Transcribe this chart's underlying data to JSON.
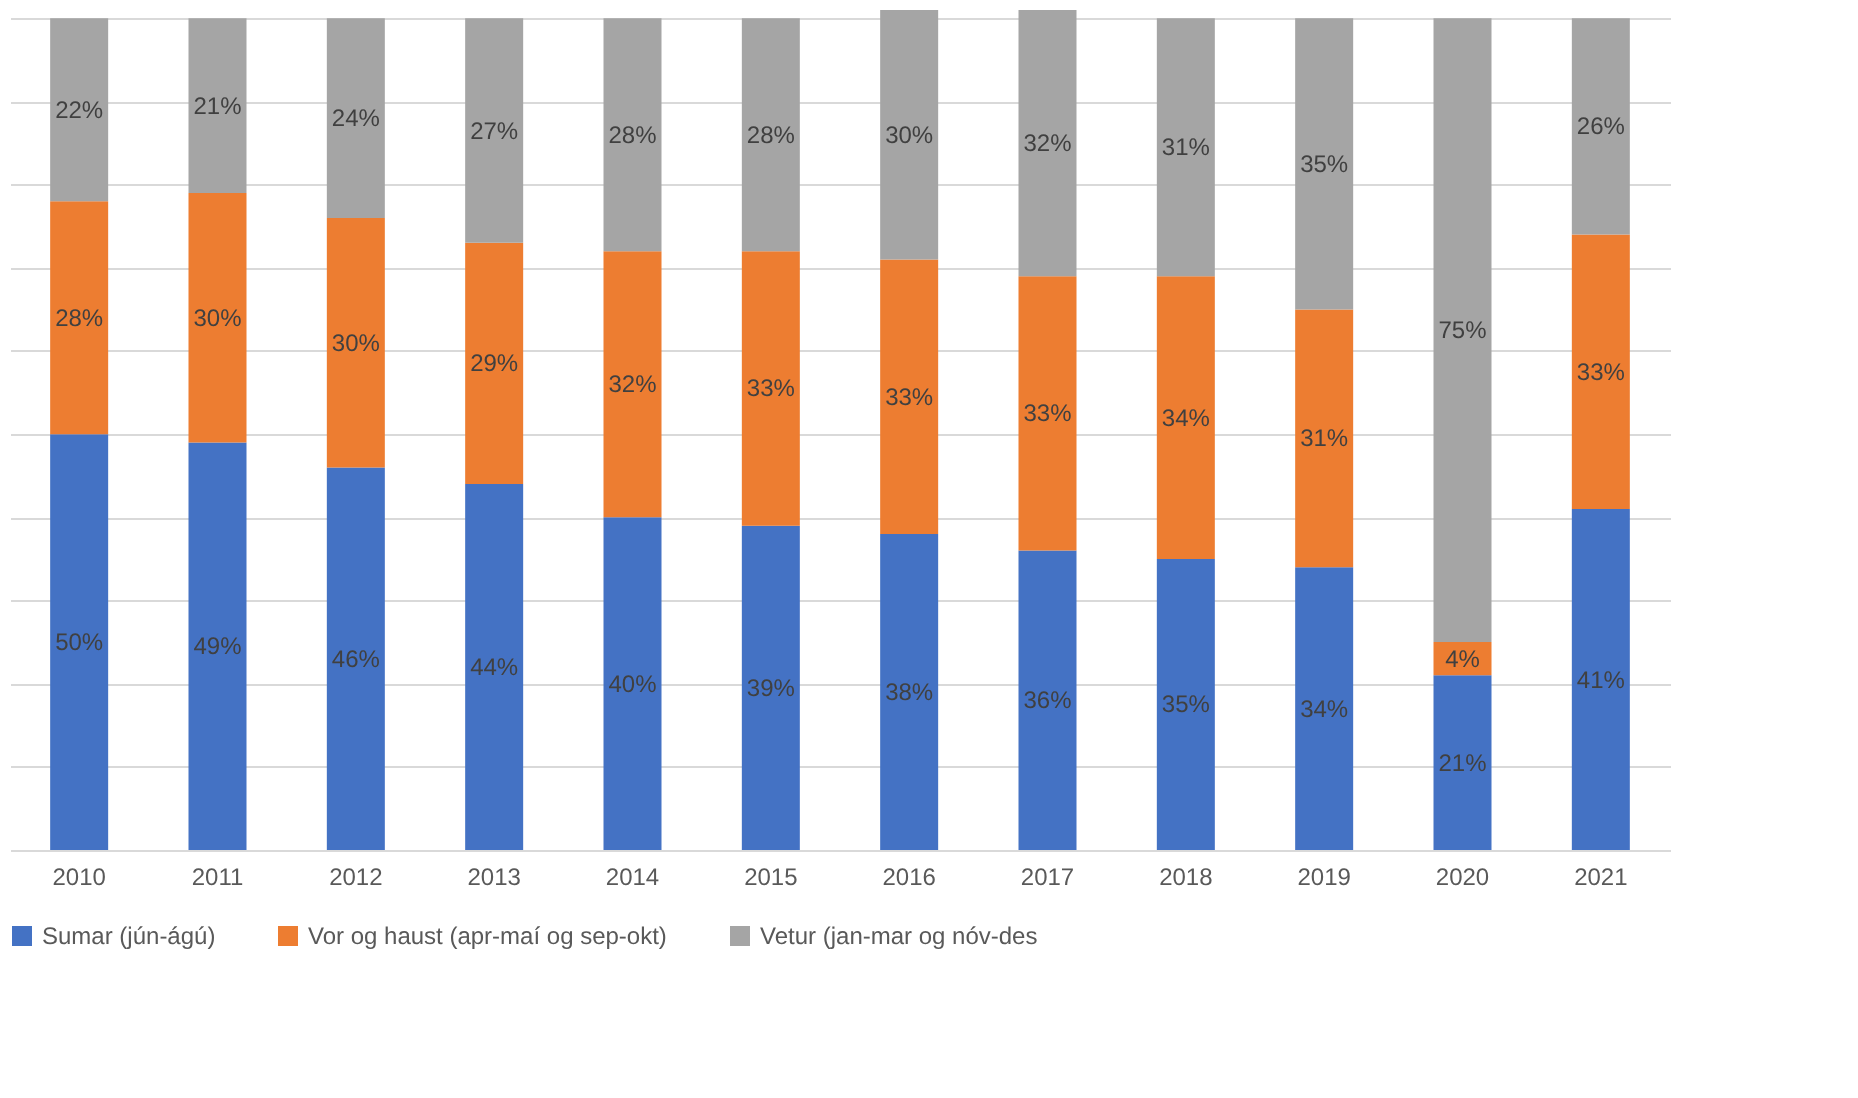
{
  "chart_data": {
    "type": "bar",
    "stacked": true,
    "categories": [
      "2010",
      "2011",
      "2012",
      "2013",
      "2014",
      "2015",
      "2016",
      "2017",
      "2018",
      "2019",
      "2020",
      "2021"
    ],
    "series": [
      {
        "name": "Sumar (jún-ágú)",
        "color": "#4472c4",
        "values": [
          50,
          49,
          46,
          44,
          40,
          39,
          38,
          36,
          35,
          34,
          21,
          41
        ],
        "value_labels": [
          "50%",
          "49%",
          "46%",
          "44%",
          "40%",
          "39%",
          "38%",
          "36%",
          "35%",
          "34%",
          "21%",
          "41%"
        ]
      },
      {
        "name": "Vor og haust (apr-maí og sep-okt)",
        "color": "#ed7d31",
        "values": [
          28,
          30,
          30,
          29,
          32,
          33,
          33,
          33,
          34,
          31,
          4,
          33
        ],
        "value_labels": [
          "28%",
          "30%",
          "30%",
          "29%",
          "32%",
          "33%",
          "33%",
          "33%",
          "34%",
          "31%",
          "4%",
          "33%"
        ]
      },
      {
        "name": "Vetur (jan-mar og nóv-des",
        "color": "#a5a5a5",
        "values": [
          22,
          21,
          24,
          27,
          28,
          28,
          30,
          32,
          31,
          35,
          75,
          26
        ],
        "value_labels": [
          "22%",
          "21%",
          "24%",
          "27%",
          "28%",
          "28%",
          "30%",
          "32%",
          "31%",
          "35%",
          "75%",
          "26%"
        ]
      }
    ],
    "ylim": [
      0,
      101
    ],
    "yticks": [
      {
        "value": 0,
        "label": null
      },
      {
        "value": 10,
        "label": null
      },
      {
        "value": 20,
        "label": null
      },
      {
        "value": 30,
        "label": null
      },
      {
        "value": 40,
        "label": null
      },
      {
        "value": 50,
        "label": null
      },
      {
        "value": 60,
        "label": null
      },
      {
        "value": 70,
        "label": null
      },
      {
        "value": 80,
        "label": null
      },
      {
        "value": 90,
        "label": null
      },
      {
        "value": 100,
        "label": null
      }
    ],
    "grid": "y",
    "legend": "bottom",
    "tick_labels": "x"
  }
}
